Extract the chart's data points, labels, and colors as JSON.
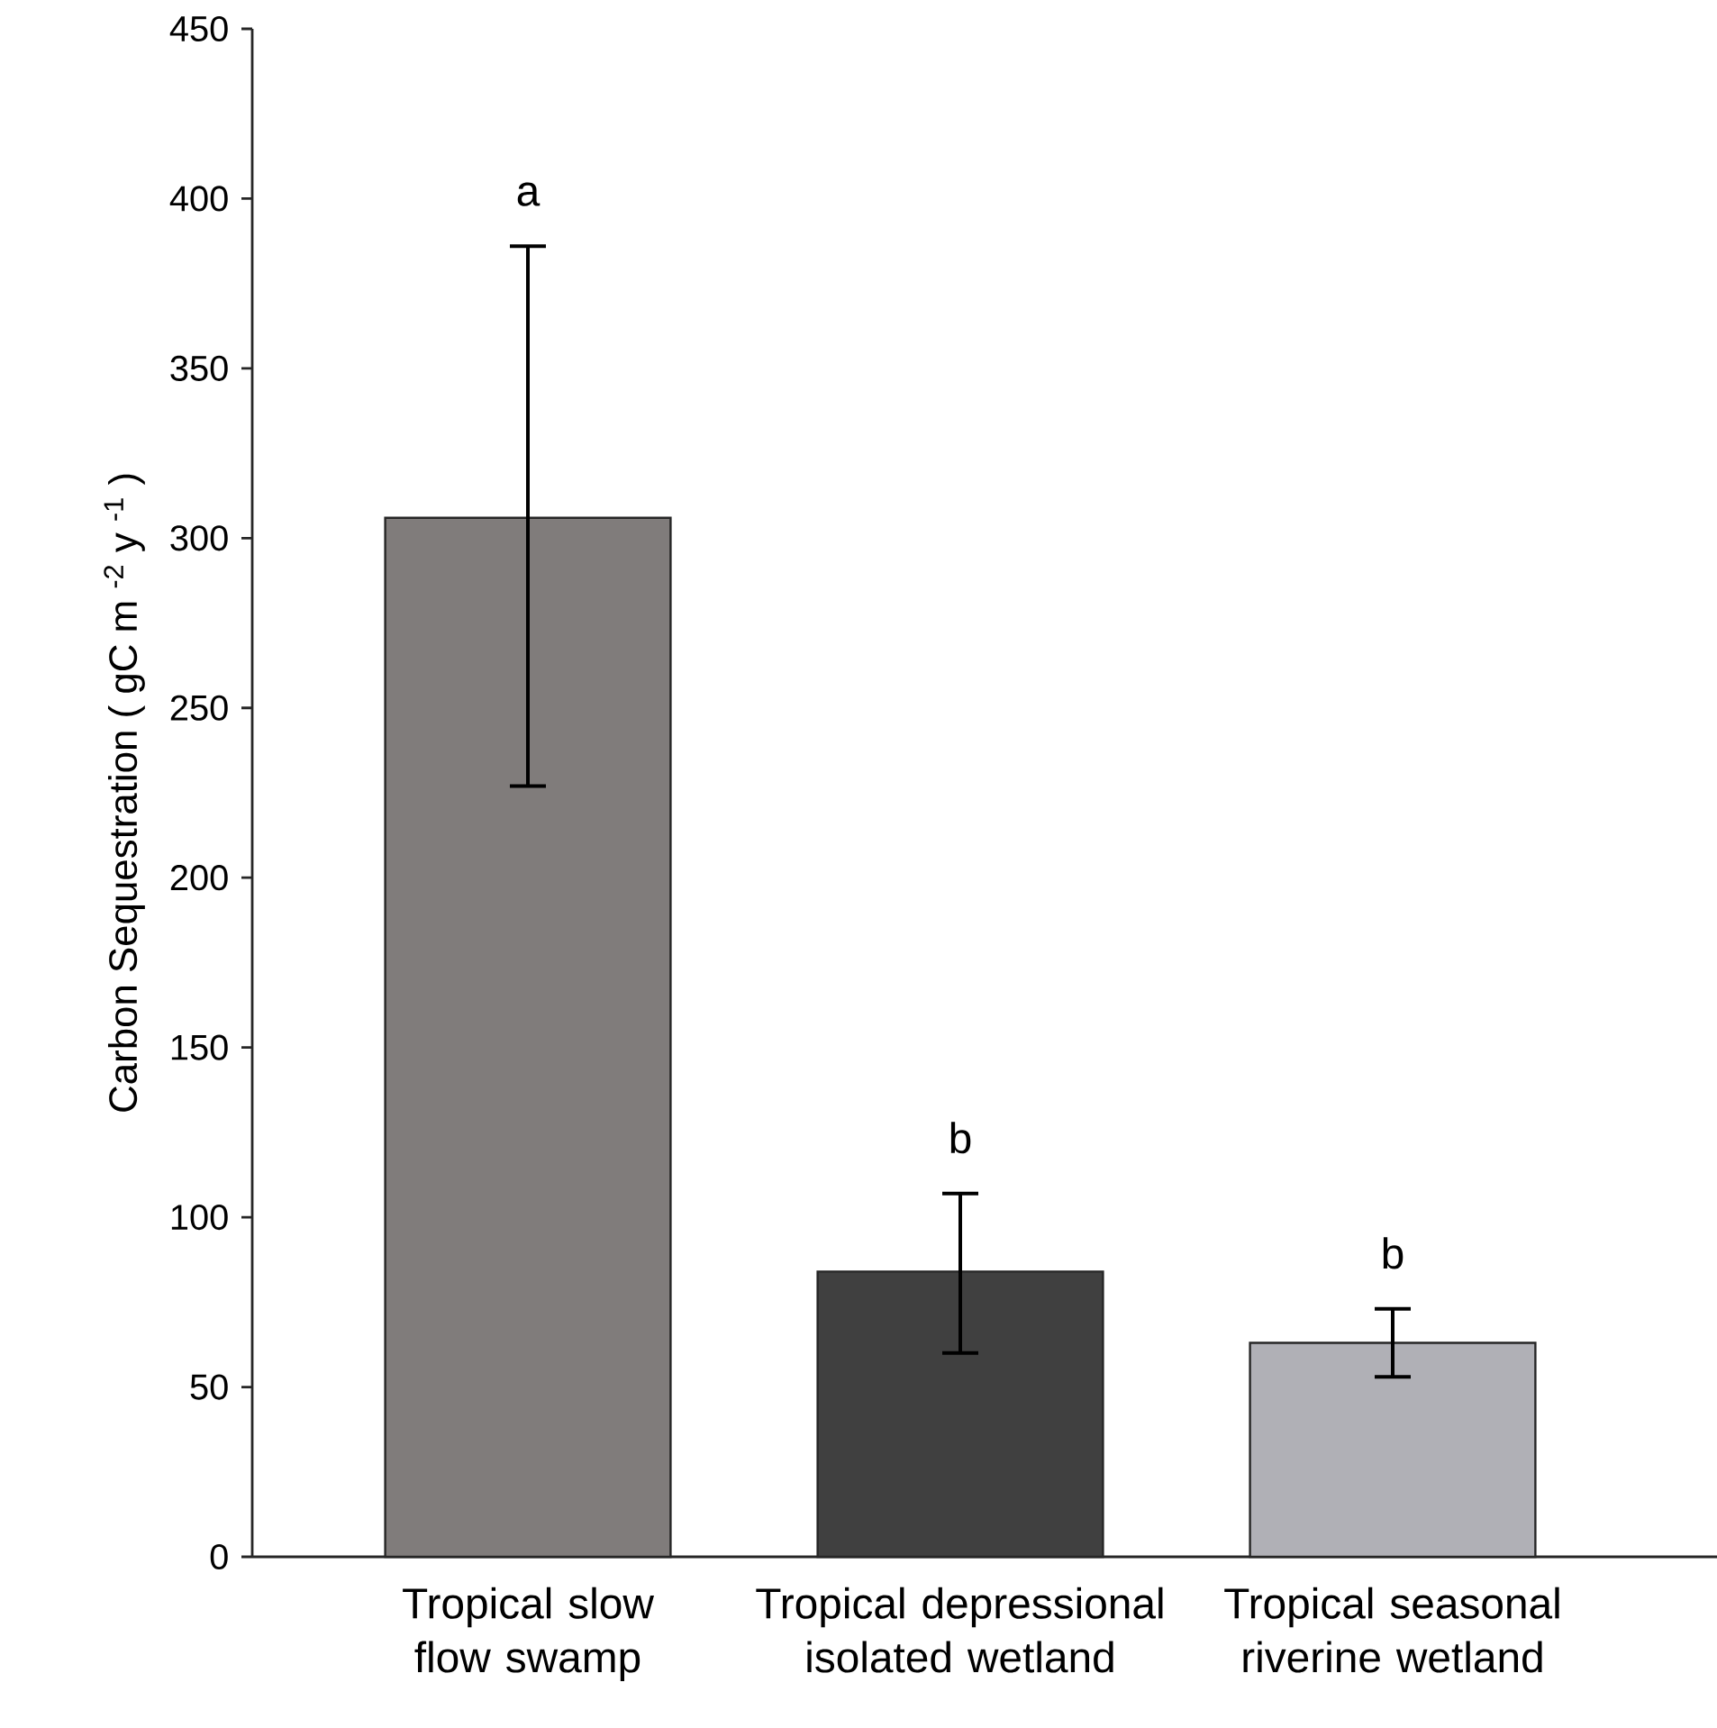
{
  "chart_data": {
    "type": "bar",
    "ylabel": "Carbon Sequestration ( gC m $^{-2}$ y $^{-1}$ )",
    "categories": [
      "Tropical slow flow swamp",
      "Tropical depressional isolated wetland",
      "Tropical seasonal riverine wetland"
    ],
    "values": [
      306,
      84,
      63
    ],
    "colors": [
      "#807c7b",
      "#404040",
      "#b0b0b6"
    ],
    "errors": [
      [
        227,
        386
      ],
      [
        60,
        107
      ],
      [
        53,
        73
      ]
    ],
    "annotations": [
      "a",
      "b",
      "b"
    ],
    "ylim": [
      0,
      450
    ],
    "yticks": [
      0,
      50,
      100,
      150,
      200,
      250,
      300,
      350,
      400,
      450
    ]
  }
}
